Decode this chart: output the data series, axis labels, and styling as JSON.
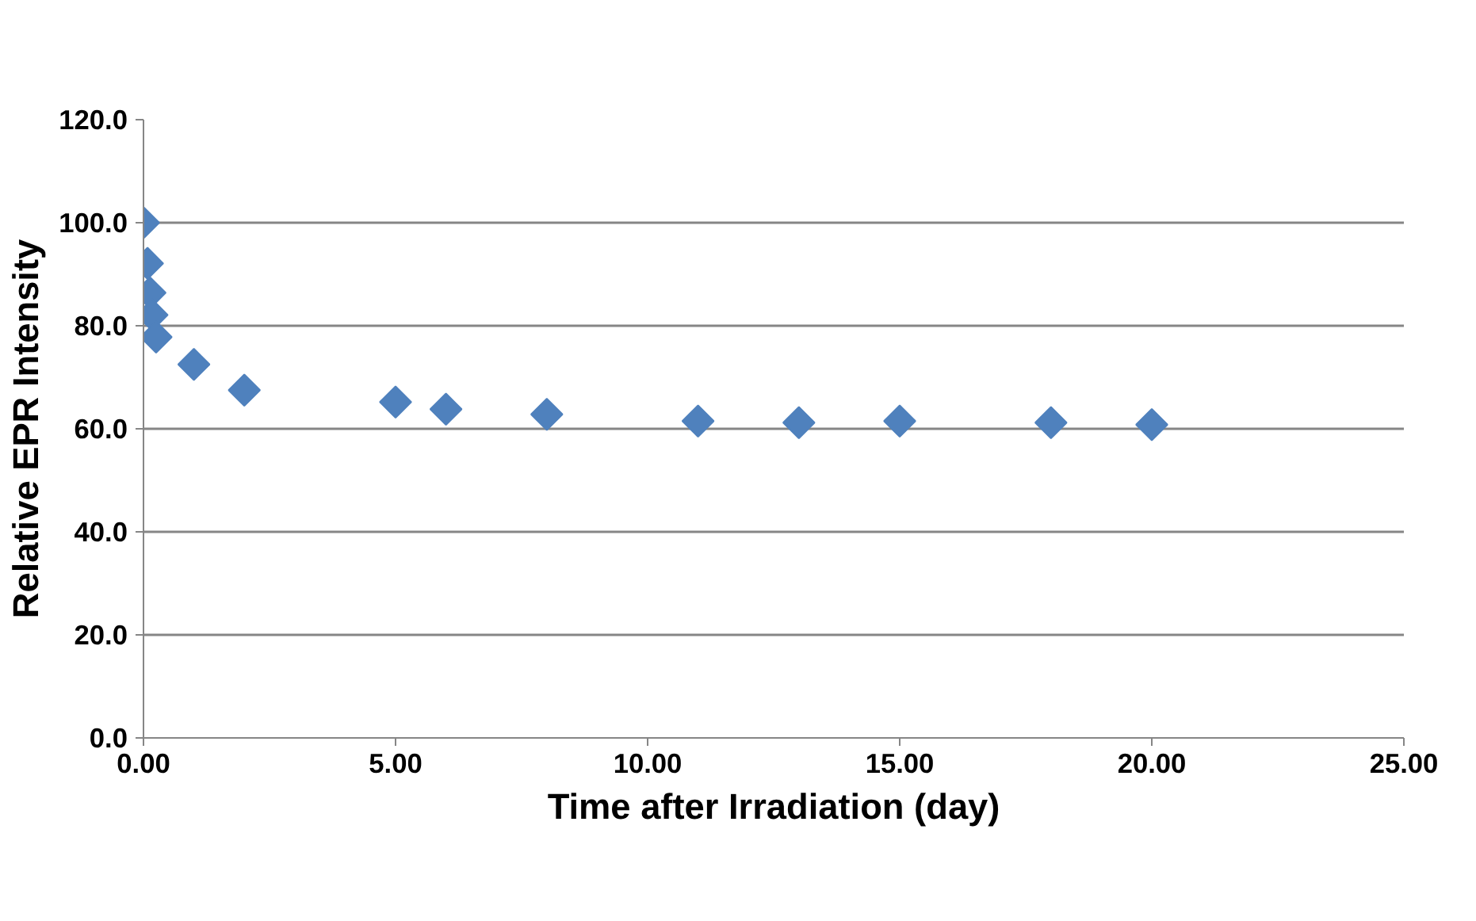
{
  "chart_data": {
    "type": "scatter",
    "xlabel": "Time after Irradiation (day)",
    "ylabel": "Relative EPR Intensity",
    "x": [
      0,
      0.08,
      0.13,
      0.17,
      0.25,
      1,
      2,
      5,
      6,
      8,
      11,
      13,
      15,
      18,
      20
    ],
    "values": [
      100,
      92.1,
      86.4,
      82.1,
      77.8,
      72.5,
      67.5,
      65.2,
      63.8,
      62.8,
      61.5,
      61.2,
      61.5,
      61.2,
      60.8
    ],
    "color": "#4f81bd",
    "marker": "diamond",
    "grid": "y",
    "xlim": [
      0,
      25
    ],
    "ylim": [
      0,
      120
    ],
    "xticks": [
      {
        "value": 0,
        "label": "0.00"
      },
      {
        "value": 5,
        "label": "5.00"
      },
      {
        "value": 10,
        "label": "10.00"
      },
      {
        "value": 15,
        "label": "15.00"
      },
      {
        "value": 20,
        "label": "20.00"
      },
      {
        "value": 25,
        "label": "25.00"
      }
    ],
    "yticks": [
      {
        "value": 0,
        "label": "0.0"
      },
      {
        "value": 20,
        "label": "20.0"
      },
      {
        "value": 40,
        "label": "40.0"
      },
      {
        "value": 60,
        "label": "60.0"
      },
      {
        "value": 80,
        "label": "80.0"
      },
      {
        "value": 100,
        "label": "100.0"
      },
      {
        "value": 120,
        "label": "120.0"
      }
    ]
  }
}
